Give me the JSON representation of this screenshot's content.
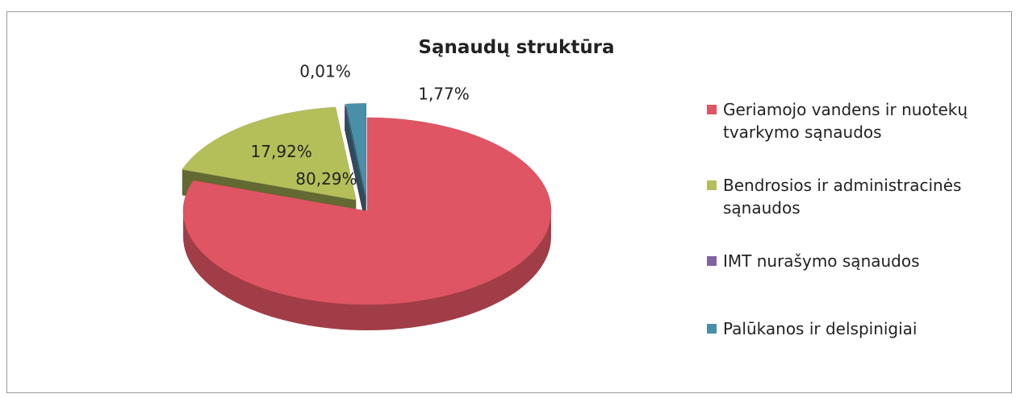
{
  "chart_data": {
    "type": "pie",
    "title": "Sąnaudų struktūra",
    "categories": [
      "Geriamojo vandens ir nuotekų tvarkymo sąnaudos",
      "Bendrosios ir administracinės sąnaudos",
      "IMT nurašymo sąnaudos",
      "Palūkanos ir delspinigiai"
    ],
    "values": [
      80.29,
      17.92,
      0.01,
      1.77
    ],
    "value_labels": [
      "80,29%",
      "17,92%",
      "0,01%",
      "1,77%"
    ],
    "colors": [
      "#e05563",
      "#b4bf5a",
      "#8064a2",
      "#4a8fa8"
    ],
    "legend": "right"
  }
}
